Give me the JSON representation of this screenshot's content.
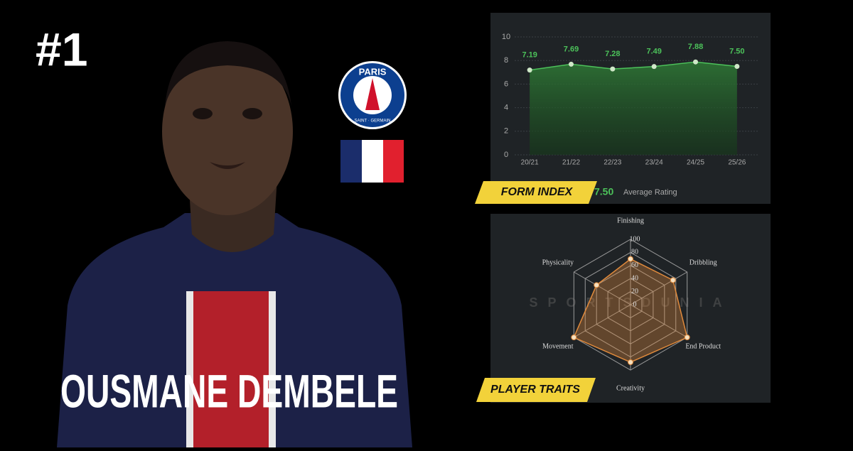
{
  "rank": "#1",
  "player_name": "OUSMANE DEMBELE",
  "badge": {
    "top": "PARIS",
    "bottom": "SAINT · GERMAIN"
  },
  "watermark": "SPORTSDUNIA",
  "average_rating": {
    "value": "7.50",
    "label": "Average Rating"
  },
  "chart_data": [
    {
      "type": "line",
      "title": "FORM INDEX",
      "categories": [
        "20/21",
        "21/22",
        "22/23",
        "23/24",
        "24/25",
        "25/26"
      ],
      "values": [
        7.19,
        7.69,
        7.28,
        7.49,
        7.88,
        7.5
      ],
      "value_labels": [
        "7.19",
        "7.69",
        "7.28",
        "7.49",
        "7.88",
        "7.50"
      ],
      "color": "#4cc25a",
      "ylim": [
        0,
        10
      ],
      "yticks": [
        0,
        2,
        4,
        6,
        8,
        10
      ],
      "grid": true
    },
    {
      "type": "radar",
      "title": "PLAYER TRAITS",
      "categories": [
        "Finishing",
        "Dribbling",
        "End Product",
        "Creativity",
        "Movement",
        "Physicality"
      ],
      "values": [
        70,
        75,
        100,
        88,
        100,
        60
      ],
      "color": "#e08a3c",
      "rlim": [
        0,
        100
      ],
      "rticks": [
        0,
        20,
        40,
        60,
        80,
        100
      ]
    }
  ]
}
